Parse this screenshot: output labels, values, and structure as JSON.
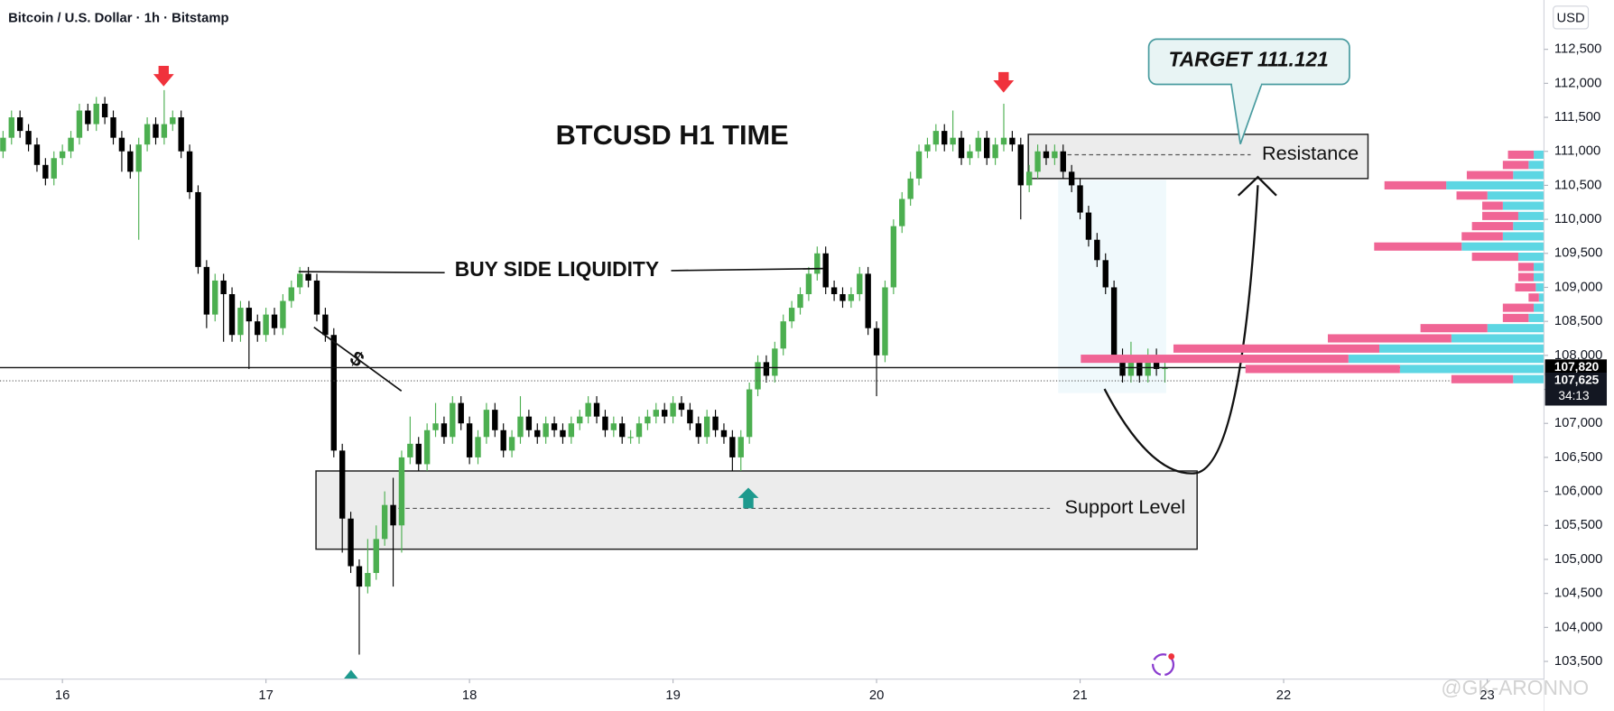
{
  "header": "Bitcoin / U.S. Dollar · 1h · Bitstamp",
  "currency": "USD",
  "watermark": "@GK-ARONNO",
  "chart_data": {
    "type": "candlestick",
    "title": "BTCUSD H1 TIME",
    "annotations": {
      "liquidity": "BUY SIDE LIQUIDITY",
      "dollar": "$",
      "target": "TARGET 111.121"
    },
    "up_color": "#4caf50",
    "down_color": "#000000",
    "candles": [
      [
        111000,
        111300,
        110900,
        111200
      ],
      [
        111200,
        111600,
        111100,
        111500
      ],
      [
        111500,
        111600,
        111200,
        111300
      ],
      [
        111300,
        111400,
        111000,
        111100
      ],
      [
        111100,
        111200,
        110700,
        110800
      ],
      [
        110800,
        110900,
        110500,
        110600
      ],
      [
        110600,
        111000,
        110500,
        110900
      ],
      [
        110900,
        111100,
        110800,
        111000
      ],
      [
        111000,
        111300,
        110900,
        111200
      ],
      [
        111200,
        111700,
        111100,
        111600
      ],
      [
        111600,
        111700,
        111300,
        111400
      ],
      [
        111400,
        111800,
        111300,
        111700
      ],
      [
        111700,
        111800,
        111400,
        111500
      ],
      [
        111500,
        111600,
        111100,
        111200
      ],
      [
        111200,
        111300,
        110700,
        111000
      ],
      [
        111000,
        111100,
        110600,
        110700
      ],
      [
        110700,
        111200,
        109700,
        111100
      ],
      [
        111100,
        111500,
        111000,
        111400
      ],
      [
        111400,
        111500,
        111100,
        111200
      ],
      [
        111200,
        111900,
        111100,
        111400
      ],
      [
        111400,
        111600,
        111300,
        111500
      ],
      [
        111500,
        111600,
        110900,
        111000
      ],
      [
        111000,
        111100,
        110300,
        110400
      ],
      [
        110400,
        110500,
        109200,
        109300
      ],
      [
        109300,
        109400,
        108400,
        108600
      ],
      [
        108600,
        109200,
        108500,
        109100
      ],
      [
        109100,
        109200,
        108200,
        108900
      ],
      [
        108900,
        109000,
        108200,
        108300
      ],
      [
        108300,
        108800,
        108200,
        108700
      ],
      [
        108700,
        108800,
        107800,
        108500
      ],
      [
        108500,
        108600,
        108200,
        108300
      ],
      [
        108300,
        108700,
        108200,
        108600
      ],
      [
        108600,
        108700,
        108300,
        108400
      ],
      [
        108400,
        108900,
        108300,
        108800
      ],
      [
        108800,
        109100,
        108700,
        109000
      ],
      [
        109000,
        109300,
        108900,
        109200
      ],
      [
        109200,
        109300,
        109000,
        109100
      ],
      [
        109100,
        109200,
        108500,
        108600
      ],
      [
        108600,
        108700,
        108200,
        108300
      ],
      [
        108300,
        108400,
        106500,
        106600
      ],
      [
        106600,
        106700,
        105100,
        105600
      ],
      [
        105600,
        105700,
        104800,
        104900
      ],
      [
        104900,
        105000,
        103600,
        104600
      ],
      [
        104600,
        105300,
        104500,
        104800
      ],
      [
        104800,
        105500,
        104700,
        105300
      ],
      [
        105300,
        106000,
        105200,
        105800
      ],
      [
        105800,
        106200,
        104600,
        105500
      ],
      [
        105500,
        106600,
        105100,
        106500
      ],
      [
        106500,
        107100,
        106400,
        106700
      ],
      [
        106700,
        106800,
        106300,
        106400
      ],
      [
        106400,
        107000,
        106300,
        106900
      ],
      [
        106900,
        107300,
        106800,
        107000
      ],
      [
        107000,
        107100,
        106700,
        106800
      ],
      [
        106800,
        107400,
        106700,
        107300
      ],
      [
        107300,
        107400,
        106900,
        107000
      ],
      [
        107000,
        107100,
        106400,
        106500
      ],
      [
        106500,
        106900,
        106400,
        106800
      ],
      [
        106800,
        107300,
        106700,
        107200
      ],
      [
        107200,
        107300,
        106800,
        106900
      ],
      [
        106900,
        107000,
        106500,
        106600
      ],
      [
        106600,
        106900,
        106500,
        106800
      ],
      [
        106800,
        107400,
        106700,
        107100
      ],
      [
        107100,
        107200,
        106800,
        106900
      ],
      [
        106900,
        107000,
        106700,
        106800
      ],
      [
        106800,
        107100,
        106700,
        107000
      ],
      [
        107000,
        107100,
        106800,
        106900
      ],
      [
        106900,
        107000,
        106700,
        106800
      ],
      [
        106800,
        107100,
        106700,
        107000
      ],
      [
        107000,
        107200,
        106900,
        107100
      ],
      [
        107100,
        107400,
        107000,
        107300
      ],
      [
        107300,
        107400,
        107000,
        107100
      ],
      [
        107100,
        107200,
        106800,
        106900
      ],
      [
        106900,
        107100,
        106800,
        107000
      ],
      [
        107000,
        107100,
        106700,
        106800
      ],
      [
        106800,
        106900,
        106700,
        106800
      ],
      [
        106800,
        107100,
        106700,
        107000
      ],
      [
        107000,
        107200,
        106900,
        107100
      ],
      [
        107100,
        107300,
        107000,
        107200
      ],
      [
        107200,
        107300,
        107000,
        107100
      ],
      [
        107100,
        107400,
        107000,
        107300
      ],
      [
        107300,
        107400,
        107100,
        107200
      ],
      [
        107200,
        107300,
        106900,
        107000
      ],
      [
        107000,
        107100,
        106700,
        106800
      ],
      [
        106800,
        107200,
        106700,
        107100
      ],
      [
        107100,
        107200,
        106800,
        106900
      ],
      [
        106900,
        107000,
        106700,
        106800
      ],
      [
        106800,
        106900,
        106300,
        106500
      ],
      [
        106500,
        106900,
        106300,
        106800
      ],
      [
        106800,
        107600,
        106700,
        107500
      ],
      [
        107500,
        108000,
        107400,
        107900
      ],
      [
        107900,
        108000,
        107600,
        107700
      ],
      [
        107700,
        108200,
        107600,
        108100
      ],
      [
        108100,
        108600,
        108000,
        108500
      ],
      [
        108500,
        108800,
        108400,
        108700
      ],
      [
        108700,
        109000,
        108600,
        108900
      ],
      [
        108900,
        109300,
        108800,
        109200
      ],
      [
        109200,
        109600,
        109100,
        109500
      ],
      [
        109500,
        109600,
        108900,
        109000
      ],
      [
        109000,
        109100,
        108800,
        108900
      ],
      [
        108900,
        109000,
        108700,
        108800
      ],
      [
        108800,
        109000,
        108700,
        108900
      ],
      [
        108900,
        109300,
        108800,
        109200
      ],
      [
        109200,
        109300,
        108300,
        108400
      ],
      [
        108400,
        108500,
        107400,
        108000
      ],
      [
        108000,
        109100,
        107900,
        109000
      ],
      [
        109000,
        110000,
        108900,
        109900
      ],
      [
        109900,
        110400,
        109800,
        110300
      ],
      [
        110300,
        110700,
        110200,
        110600
      ],
      [
        110600,
        111100,
        110500,
        111000
      ],
      [
        111000,
        111200,
        110900,
        111100
      ],
      [
        111100,
        111400,
        111000,
        111300
      ],
      [
        111300,
        111400,
        111000,
        111100
      ],
      [
        111100,
        111600,
        111000,
        111200
      ],
      [
        111200,
        111300,
        110800,
        110900
      ],
      [
        110900,
        111100,
        110800,
        111000
      ],
      [
        111000,
        111300,
        110900,
        111200
      ],
      [
        111200,
        111300,
        110800,
        110900
      ],
      [
        110900,
        111200,
        110800,
        111100
      ],
      [
        111100,
        111700,
        111000,
        111200
      ],
      [
        111200,
        111300,
        111000,
        111100
      ],
      [
        111100,
        111200,
        110000,
        110500
      ],
      [
        110500,
        110800,
        110400,
        110700
      ],
      [
        110700,
        111100,
        110600,
        111000
      ],
      [
        111000,
        111100,
        110800,
        110900
      ],
      [
        110900,
        111100,
        110800,
        111000
      ],
      [
        111000,
        111100,
        110600,
        110700
      ],
      [
        110700,
        110800,
        110400,
        110500
      ],
      [
        110500,
        110600,
        110000,
        110100
      ],
      [
        110100,
        110200,
        109600,
        109700
      ],
      [
        109700,
        109800,
        109300,
        109400
      ],
      [
        109400,
        109500,
        108900,
        109000
      ],
      [
        109000,
        109100,
        107900,
        108000
      ],
      [
        108000,
        108100,
        107600,
        107700
      ],
      [
        107700,
        108200,
        107600,
        107900
      ],
      [
        107900,
        108000,
        107600,
        107700
      ],
      [
        107700,
        108100,
        107600,
        108000
      ],
      [
        108000,
        108100,
        107700,
        107800
      ],
      [
        107800,
        107900,
        107600,
        107820
      ]
    ],
    "xlim": [
      -0.36,
      181.7
    ],
    "xticks": [
      {
        "value": 7,
        "label": "16"
      },
      {
        "value": 31,
        "label": "17"
      },
      {
        "value": 55,
        "label": "18"
      },
      {
        "value": 79,
        "label": "19"
      },
      {
        "value": 103,
        "label": "20"
      },
      {
        "value": 127,
        "label": "21"
      },
      {
        "value": 151,
        "label": "22"
      },
      {
        "value": 175,
        "label": "23"
      }
    ],
    "ylim": [
      103240,
      113225
    ],
    "yticks": [
      {
        "value": 112500,
        "label": "112,500"
      },
      {
        "value": 112000,
        "label": "112,000"
      },
      {
        "value": 111500,
        "label": "111,500"
      },
      {
        "value": 111000,
        "label": "111,000"
      },
      {
        "value": 110500,
        "label": "110,500"
      },
      {
        "value": 110000,
        "label": "110,000"
      },
      {
        "value": 109500,
        "label": "109,500"
      },
      {
        "value": 109000,
        "label": "109,000"
      },
      {
        "value": 108500,
        "label": "108,500"
      },
      {
        "value": 108000,
        "label": "108,000"
      },
      {
        "value": 107500,
        "label": "107,500"
      },
      {
        "value": 107000,
        "label": "107,000"
      },
      {
        "value": 106500,
        "label": "106,500"
      },
      {
        "value": 106000,
        "label": "106,000"
      },
      {
        "value": 105500,
        "label": "105,500"
      },
      {
        "value": 105000,
        "label": "105,000"
      },
      {
        "value": 104500,
        "label": "104,500"
      },
      {
        "value": 104000,
        "label": "104,000"
      },
      {
        "value": 103500,
        "label": "103,500"
      }
    ],
    "last_price": {
      "value": 107820,
      "label": "107,820"
    },
    "ref_price": {
      "value": 107625,
      "label": "107,625"
    },
    "countdown": "34:13",
    "zones": [
      {
        "label": "Resistance",
        "top": 111250,
        "bottom": 110600,
        "mid": 110950
      },
      {
        "label": "Support Level",
        "top": 106300,
        "bottom": 105150,
        "mid": 105750
      }
    ],
    "volume_profile": {
      "levels": [
        110950,
        110800,
        110650,
        110500,
        110350,
        110200,
        110050,
        109900,
        109750,
        109600,
        109450,
        109300,
        109150,
        109000,
        108850,
        108700,
        108550,
        108400,
        108250,
        108100,
        107950,
        107800,
        107650
      ],
      "up": [
        10,
        15,
        30,
        95,
        55,
        40,
        25,
        30,
        40,
        80,
        25,
        10,
        10,
        8,
        5,
        10,
        15,
        55,
        90,
        160,
        190,
        140,
        30
      ],
      "down": [
        25,
        25,
        45,
        60,
        30,
        20,
        35,
        40,
        40,
        85,
        45,
        15,
        15,
        20,
        10,
        30,
        25,
        65,
        120,
        200,
        260,
        150,
        60
      ],
      "up_color": "#5dd6e3",
      "down_color": "#f06595"
    }
  }
}
